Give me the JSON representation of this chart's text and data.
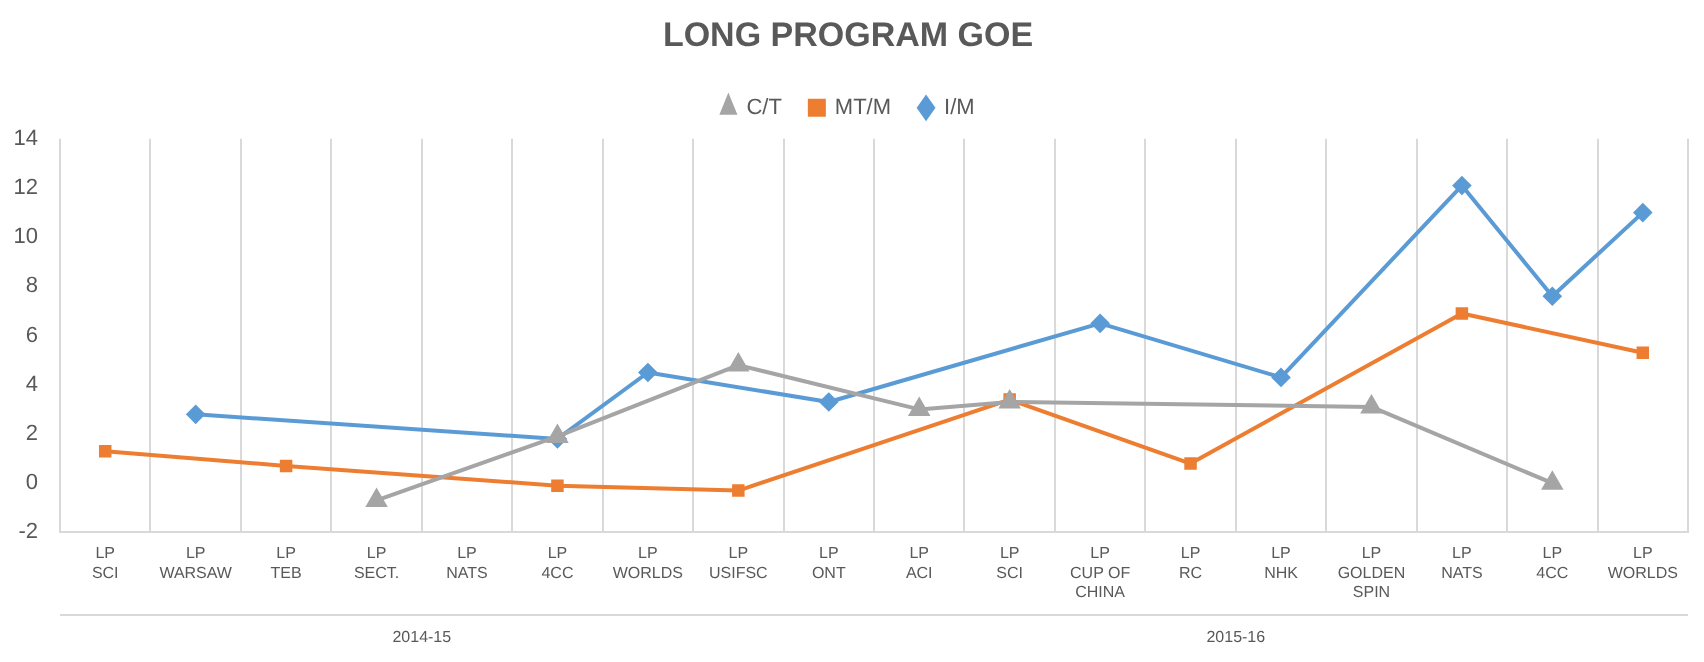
{
  "chart_data": {
    "type": "line",
    "title": "LONG PROGRAM GOE",
    "categories": [
      "LP\nSCI",
      "LP\nWARSAW",
      "LP\nTEB",
      "LP\nSECT.",
      "LP\nNATS",
      "LP\n4CC",
      "LP\nWORLDS",
      "LP\nUSIFSC",
      "LP\nONT",
      "LP\nACI",
      "LP\nSCI",
      "LP\nCUP OF\nCHINA",
      "LP\nRC",
      "LP\nNHK",
      "LP\nGOLDEN\nSPIN",
      "LP\nNATS",
      "LP\n4CC",
      "LP\nWORLDS"
    ],
    "series": [
      {
        "name": "I/M",
        "color": "#5b9bd5",
        "marker": "diamond",
        "values": [
          null,
          2.8,
          null,
          null,
          null,
          1.8,
          4.5,
          null,
          3.3,
          null,
          null,
          6.5,
          null,
          4.3,
          null,
          12.1,
          7.6,
          11.0
        ]
      },
      {
        "name": "MT/M",
        "color": "#ed7d31",
        "marker": "square",
        "values": [
          1.3,
          null,
          0.7,
          null,
          null,
          -0.1,
          null,
          -0.3,
          null,
          null,
          3.4,
          null,
          0.8,
          null,
          null,
          6.9,
          null,
          5.3
        ]
      },
      {
        "name": "C/T",
        "color": "#a5a5a5",
        "marker": "triangle",
        "values": [
          null,
          null,
          null,
          -0.7,
          null,
          1.9,
          null,
          4.8,
          null,
          3.0,
          3.3,
          null,
          null,
          null,
          3.1,
          null,
          0.0,
          null
        ]
      }
    ],
    "ylim": [
      -2,
      14
    ],
    "yticks": [
      -2,
      0,
      2,
      4,
      6,
      8,
      10,
      12,
      14
    ],
    "grid": "x",
    "legend": "top",
    "annotations": [
      "2014-15",
      "2015-16"
    ]
  }
}
